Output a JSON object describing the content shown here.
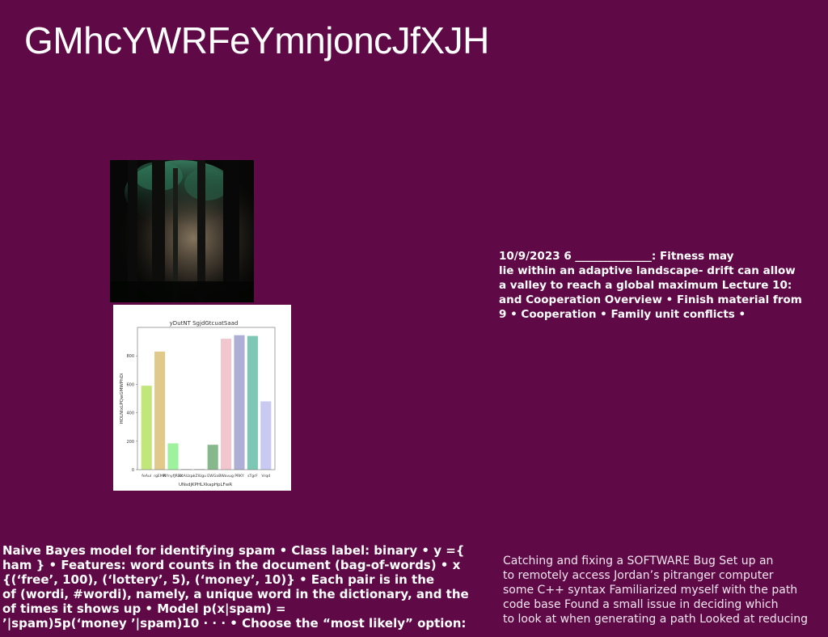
{
  "title": "GMhcYWRFeYmnjoncJfXJH",
  "right_mid_lines": [
    "10/9/2023 6 ______________: Fitness may",
    "lie within an adaptive landscape- drift can allow",
    "a valley to reach a global maximum Lecture 10:",
    "and Cooperation Overview • Finish material from",
    "9 • Cooperation • Family unit conflicts •"
  ],
  "bottom_left_lines": [
    "Naive Bayes model for identifying spam • Class label: binary • y ={",
    "ham } • Features: word counts in the document (bag-of-words) • x",
    "{(‘free’, 100), (‘lottery’, 5), (‘money’, 10)} • Each pair is in the",
    "of (wordi, #wordi), namely, a unique word in the dictionary, and the",
    "of times it shows up • Model p(x|spam) =",
    "’|spam)5p(‘money ’|spam)10 · · · • Choose the “most likely” option:"
  ],
  "bottom_right_lines": [
    "Catching and fixing a SOFTWARE Bug  Set up an",
    "to remotely access Jordan’s pitranger computer ",
    "some C++ syntax  Familiarized myself with the path",
    "code base  Found a small issue in deciding which",
    "to look at when generating a path  Looked at reducing"
  ],
  "colors": {
    "background": "#5f0947",
    "text": "#ffffff"
  },
  "chart_data": {
    "type": "bar",
    "title": "yDutNT SgjdGtcuatSaad",
    "xlabel": "UNsdjKPHLXkapHpLFwR",
    "ylabel": "HOLNIxLPQwGMWPhDi",
    "categories": [
      "feAul",
      "rgEMR",
      "NYnyfJRBX",
      "XcAUzpi",
      "eZIUgu",
      "EWGa",
      "BWavug",
      "PRKY",
      "sTgrF",
      "Vrqd"
    ],
    "values": [
      590,
      830,
      185,
      5,
      5,
      175,
      920,
      945,
      940,
      480
    ],
    "colors": [
      "#c1e67a",
      "#e0c98a",
      "#9ef29e",
      "#c8c8c8",
      "#c8c8c8",
      "#86b88c",
      "#f2c6ce",
      "#aeaed6",
      "#7dc8b4",
      "#c8caf2"
    ],
    "yticks": [
      0,
      200,
      400,
      600,
      800
    ],
    "ylim": [
      0,
      1000
    ]
  }
}
